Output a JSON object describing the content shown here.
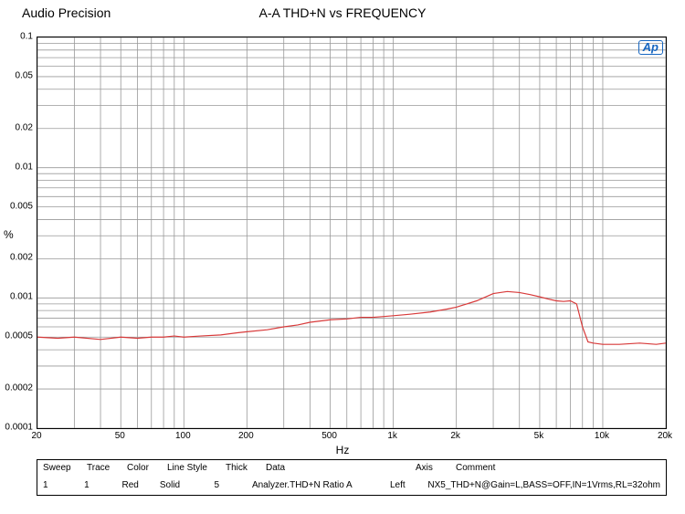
{
  "brand": "Audio Precision",
  "title": "A-A THD+N vs FREQUENCY",
  "badge": "Ap",
  "chart": {
    "type": "line-loglog",
    "background": "#ffffff",
    "grid_color": "#999999",
    "gridline_width": 0.8,
    "series_color": "#d83a3a",
    "series_width": 1.2,
    "xlabel": "Hz",
    "ylabel": "%",
    "label_fontsize": 12,
    "tick_fontsize": 10,
    "xlim": [
      20,
      20000
    ],
    "ylim": [
      0.0001,
      0.1
    ],
    "xticks": [
      {
        "v": 20,
        "label": "20"
      },
      {
        "v": 50,
        "label": "50"
      },
      {
        "v": 100,
        "label": "100"
      },
      {
        "v": 200,
        "label": "200"
      },
      {
        "v": 500,
        "label": "500"
      },
      {
        "v": 1000,
        "label": "1k"
      },
      {
        "v": 2000,
        "label": "2k"
      },
      {
        "v": 5000,
        "label": "5k"
      },
      {
        "v": 10000,
        "label": "10k"
      },
      {
        "v": 20000,
        "label": "20k"
      }
    ],
    "yticks": [
      {
        "v": 0.0001,
        "label": "0.0001"
      },
      {
        "v": 0.0002,
        "label": "0.0002"
      },
      {
        "v": 0.0005,
        "label": "0.0005"
      },
      {
        "v": 0.001,
        "label": "0.001"
      },
      {
        "v": 0.002,
        "label": "0.002"
      },
      {
        "v": 0.005,
        "label": "0.005"
      },
      {
        "v": 0.01,
        "label": "0.01"
      },
      {
        "v": 0.02,
        "label": "0.02"
      },
      {
        "v": 0.05,
        "label": "0.05"
      },
      {
        "v": 0.1,
        "label": "0.1"
      }
    ],
    "x_minor": [
      30,
      40,
      60,
      70,
      80,
      90,
      300,
      400,
      600,
      700,
      800,
      900,
      3000,
      4000,
      6000,
      7000,
      8000,
      9000
    ],
    "y_minor": [
      0.0003,
      0.0004,
      0.0006,
      0.0007,
      0.0008,
      0.0009,
      0.003,
      0.004,
      0.006,
      0.007,
      0.008,
      0.009,
      0.03,
      0.04,
      0.06,
      0.07,
      0.08,
      0.09
    ],
    "series": [
      {
        "x": 20,
        "y": 0.0005
      },
      {
        "x": 25,
        "y": 0.00049
      },
      {
        "x": 30,
        "y": 0.0005
      },
      {
        "x": 40,
        "y": 0.00048
      },
      {
        "x": 50,
        "y": 0.0005
      },
      {
        "x": 60,
        "y": 0.00049
      },
      {
        "x": 70,
        "y": 0.0005
      },
      {
        "x": 80,
        "y": 0.0005
      },
      {
        "x": 90,
        "y": 0.00051
      },
      {
        "x": 100,
        "y": 0.0005
      },
      {
        "x": 120,
        "y": 0.00051
      },
      {
        "x": 150,
        "y": 0.00052
      },
      {
        "x": 180,
        "y": 0.00054
      },
      {
        "x": 200,
        "y": 0.00055
      },
      {
        "x": 250,
        "y": 0.00057
      },
      {
        "x": 300,
        "y": 0.0006
      },
      {
        "x": 350,
        "y": 0.00062
      },
      {
        "x": 400,
        "y": 0.00065
      },
      {
        "x": 500,
        "y": 0.00068
      },
      {
        "x": 600,
        "y": 0.00069
      },
      {
        "x": 700,
        "y": 0.00071
      },
      {
        "x": 800,
        "y": 0.00071
      },
      {
        "x": 900,
        "y": 0.00072
      },
      {
        "x": 1000,
        "y": 0.00073
      },
      {
        "x": 1200,
        "y": 0.00075
      },
      {
        "x": 1500,
        "y": 0.00078
      },
      {
        "x": 1800,
        "y": 0.00082
      },
      {
        "x": 2000,
        "y": 0.00085
      },
      {
        "x": 2500,
        "y": 0.00095
      },
      {
        "x": 3000,
        "y": 0.00108
      },
      {
        "x": 3500,
        "y": 0.00112
      },
      {
        "x": 4000,
        "y": 0.0011
      },
      {
        "x": 4500,
        "y": 0.00106
      },
      {
        "x": 5000,
        "y": 0.00102
      },
      {
        "x": 5500,
        "y": 0.00098
      },
      {
        "x": 6000,
        "y": 0.00095
      },
      {
        "x": 6500,
        "y": 0.00094
      },
      {
        "x": 7000,
        "y": 0.00095
      },
      {
        "x": 7500,
        "y": 0.0009
      },
      {
        "x": 8000,
        "y": 0.0006
      },
      {
        "x": 8500,
        "y": 0.00046
      },
      {
        "x": 9000,
        "y": 0.00045
      },
      {
        "x": 10000,
        "y": 0.00044
      },
      {
        "x": 12000,
        "y": 0.00044
      },
      {
        "x": 15000,
        "y": 0.00045
      },
      {
        "x": 18000,
        "y": 0.00044
      },
      {
        "x": 20000,
        "y": 0.00045
      }
    ]
  },
  "legend": {
    "headers": [
      "Sweep",
      "Trace",
      "Color",
      "Line Style",
      "Thick",
      "Data",
      "Axis",
      "Comment"
    ],
    "row": {
      "sweep": "1",
      "trace": "1",
      "color": "Red",
      "line_style": "Solid",
      "thick": "5",
      "data": "Analyzer.THD+N Ratio A",
      "axis": "Left",
      "comment": "NX5_THD+N@Gain=L,BASS=OFF,IN=1Vrms,RL=32ohm"
    }
  }
}
